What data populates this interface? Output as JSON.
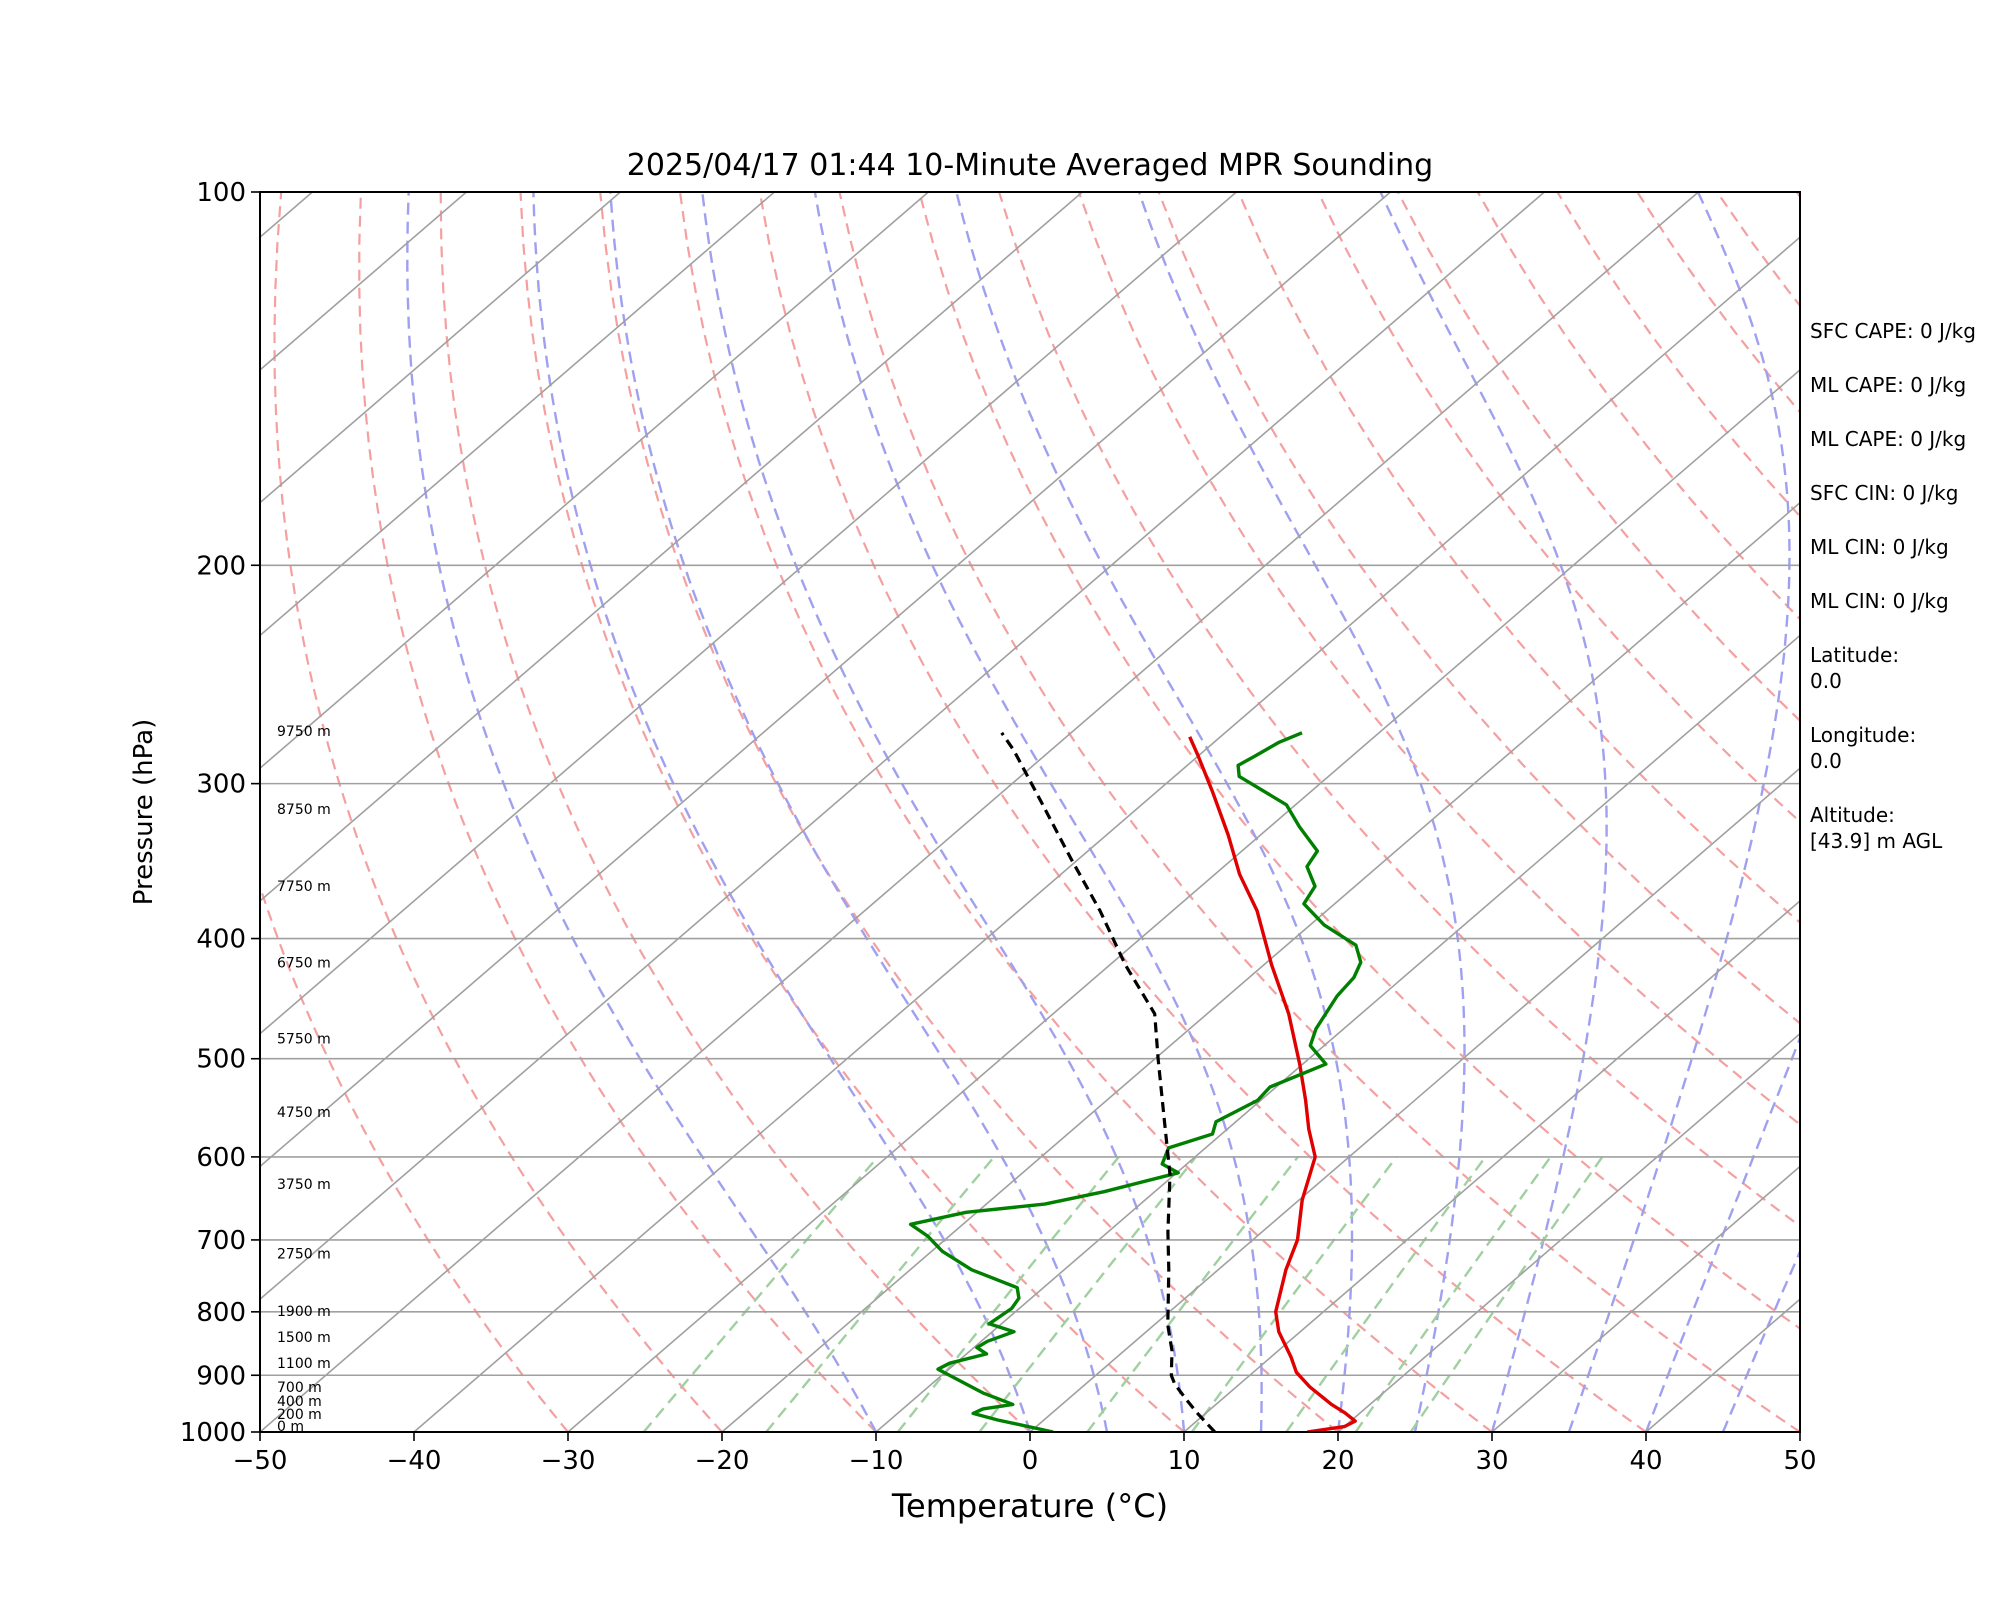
{
  "chart_data": {
    "type": "line",
    "title": "2025/04/17 01:44 10-Minute Averaged MPR Sounding",
    "xlabel": "Temperature (°C)",
    "ylabel": "Pressure (hPa)",
    "xlim": [
      -50,
      50
    ],
    "ylim": [
      1000,
      100
    ],
    "y_scale": "log",
    "grid": true,
    "x_ticks": [
      "−50",
      "−40",
      "−30",
      "−20",
      "−10",
      "0",
      "10",
      "20",
      "30",
      "40",
      "50"
    ],
    "y_ticks": [
      "100",
      "200",
      "300",
      "400",
      "500",
      "600",
      "700",
      "800",
      "900",
      "1000"
    ],
    "height_labels": [
      {
        "p": 1000,
        "text": "0 m"
      },
      {
        "p": 978,
        "text": "200 m"
      },
      {
        "p": 955,
        "text": "400 m"
      },
      {
        "p": 930,
        "text": "700 m"
      },
      {
        "p": 890,
        "text": "1100 m"
      },
      {
        "p": 848,
        "text": "1500 m"
      },
      {
        "p": 808,
        "text": "1900 m"
      },
      {
        "p": 726,
        "text": "2750 m"
      },
      {
        "p": 638,
        "text": "3750 m"
      },
      {
        "p": 558,
        "text": "4750 m"
      },
      {
        "p": 487,
        "text": "5750 m"
      },
      {
        "p": 423,
        "text": "6750 m"
      },
      {
        "p": 367,
        "text": "7750 m"
      },
      {
        "p": 318,
        "text": "8750 m"
      },
      {
        "p": 275,
        "text": "9750 m"
      }
    ],
    "series": [
      {
        "key": "temperature",
        "color": "#e00000",
        "points": [
          [
            18,
            1000
          ],
          [
            20,
            990
          ],
          [
            20.3,
            980
          ],
          [
            19,
            965
          ],
          [
            17.5,
            950
          ],
          [
            14.8,
            920
          ],
          [
            12.8,
            895
          ],
          [
            11.3,
            870
          ],
          [
            8.6,
            830
          ],
          [
            6.9,
            800
          ],
          [
            4.4,
            740
          ],
          [
            2.9,
            700
          ],
          [
            0.2,
            650
          ],
          [
            -2.2,
            600
          ],
          [
            -4.7,
            570
          ],
          [
            -7.1,
            540
          ],
          [
            -10.2,
            505
          ],
          [
            -14.7,
            460
          ],
          [
            -19.5,
            420
          ],
          [
            -24.5,
            380
          ],
          [
            -28.4,
            355
          ],
          [
            -32.1,
            330
          ],
          [
            -36.3,
            305
          ],
          [
            -40,
            285
          ],
          [
            -42,
            275
          ]
        ]
      },
      {
        "key": "dewpoint",
        "color": "#007f00",
        "points": [
          [
            1.5,
            1000
          ],
          [
            -0.5,
            990
          ],
          [
            -3,
            978
          ],
          [
            -5.1,
            966
          ],
          [
            -4.8,
            958
          ],
          [
            -3.2,
            950
          ],
          [
            -6,
            930
          ],
          [
            -10.7,
            890
          ],
          [
            -10.4,
            880
          ],
          [
            -8.7,
            865
          ],
          [
            -9.8,
            855
          ],
          [
            -9.6,
            845
          ],
          [
            -8.6,
            830
          ],
          [
            -10.8,
            818
          ],
          [
            -10.5,
            795
          ],
          [
            -10.8,
            780
          ],
          [
            -11.7,
            765
          ],
          [
            -16,
            740
          ],
          [
            -19.3,
            715
          ],
          [
            -21.4,
            695
          ],
          [
            -23.4,
            680
          ],
          [
            -20.7,
            665
          ],
          [
            -16.2,
            655
          ],
          [
            -13.3,
            640
          ],
          [
            -9.9,
            618
          ],
          [
            -11.6,
            608
          ],
          [
            -12.4,
            590
          ],
          [
            -10.6,
            575
          ],
          [
            -11.3,
            562
          ],
          [
            -10.2,
            540
          ],
          [
            -10.4,
            527
          ],
          [
            -8.5,
            505
          ],
          [
            -10.9,
            488
          ],
          [
            -11.8,
            473
          ],
          [
            -12.9,
            445
          ],
          [
            -13.2,
            430
          ],
          [
            -13.9,
            418
          ],
          [
            -15.5,
            405
          ],
          [
            -19.1,
            390
          ],
          [
            -22,
            375
          ],
          [
            -22.6,
            363
          ],
          [
            -24.6,
            350
          ],
          [
            -25.1,
            340
          ],
          [
            -28.1,
            325
          ],
          [
            -30.6,
            312
          ],
          [
            -35.8,
            296
          ],
          [
            -36.7,
            290
          ],
          [
            -36.3,
            285
          ],
          [
            -35.8,
            278
          ],
          [
            -35,
            273
          ]
        ]
      },
      {
        "key": "parcel",
        "color": "#000000",
        "points": [
          [
            12,
            1000
          ],
          [
            9.4,
            965
          ],
          [
            7.6,
            940
          ],
          [
            5.8,
            915
          ],
          [
            4.9,
            900
          ],
          [
            3.1,
            860
          ],
          [
            0.9,
            820
          ],
          [
            -3.2,
            740
          ],
          [
            -6.1,
            690
          ],
          [
            -10.3,
            620
          ],
          [
            -14.8,
            560
          ],
          [
            -19.8,
            500
          ],
          [
            -23.4,
            460
          ],
          [
            -29,
            420
          ],
          [
            -34.7,
            380
          ],
          [
            -40.5,
            345
          ],
          [
            -46.8,
            310
          ],
          [
            -52.4,
            282
          ],
          [
            -54.5,
            273
          ]
        ]
      }
    ]
  },
  "indices": [
    {
      "text": "SFC CAPE: 0 J/kg"
    },
    {
      "text": "ML CAPE: 0 J/kg"
    },
    {
      "text": "ML CAPE: 0 J/kg"
    },
    {
      "text": "SFC CIN: 0 J/kg"
    },
    {
      "text": "ML CIN: 0 J/kg"
    },
    {
      "text": "ML CIN: 0 J/kg"
    }
  ],
  "location": {
    "latitude_label": "Latitude:",
    "latitude_value": "0.0",
    "longitude_label": "Longitude:",
    "longitude_value": "0.0",
    "altitude_label": "Altitude:",
    "altitude_value": "[43.9] m AGL"
  },
  "colors": {
    "isotherm": "#a0a0a0",
    "isobar": "#a0a0a0",
    "dry_adiabat": "#f4a0a0",
    "moist_adiabat": "#a0a0f0",
    "mixing_ratio": "#a0d0a0"
  }
}
